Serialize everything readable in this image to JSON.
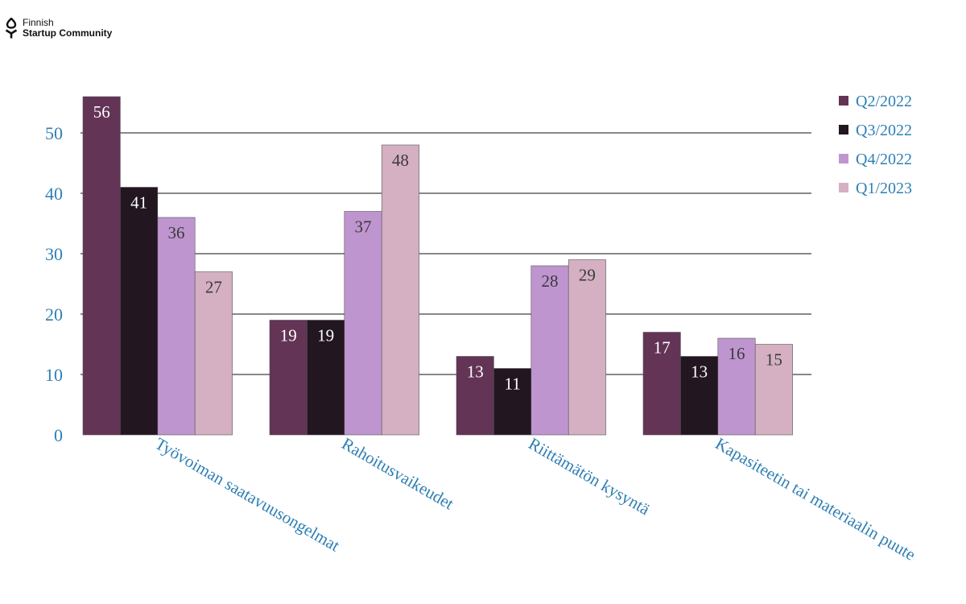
{
  "logo": {
    "line1": "Finnish",
    "line2": "Startup Community"
  },
  "chart_data": {
    "type": "bar",
    "categories": [
      "Työvoiman saatavuusongelmat",
      "Rahoitusvaikeudet",
      "Riittämätön kysyntä",
      "Kapasiteetin tai materiaalin puute"
    ],
    "series": [
      {
        "name": "Q2/2022",
        "color": "#633455",
        "label_color": "#ffffff",
        "values": [
          56,
          19,
          13,
          17
        ]
      },
      {
        "name": "Q3/2022",
        "color": "#221621",
        "label_color": "#ffffff",
        "values": [
          41,
          19,
          11,
          13
        ]
      },
      {
        "name": "Q4/2022",
        "color": "#bf95d0",
        "label_color": "#3a3a3a",
        "values": [
          36,
          37,
          28,
          16
        ]
      },
      {
        "name": "Q1/2023",
        "color": "#d4b0c2",
        "label_color": "#3a3a3a",
        "values": [
          27,
          48,
          29,
          15
        ]
      }
    ],
    "y_ticks": [
      0,
      10,
      20,
      30,
      40,
      50
    ],
    "ylim": [
      0,
      56
    ],
    "grid": true,
    "legend": "top-right",
    "axis_text_color": "#2e7fb3",
    "title": "",
    "xlabel": "",
    "ylabel": ""
  }
}
